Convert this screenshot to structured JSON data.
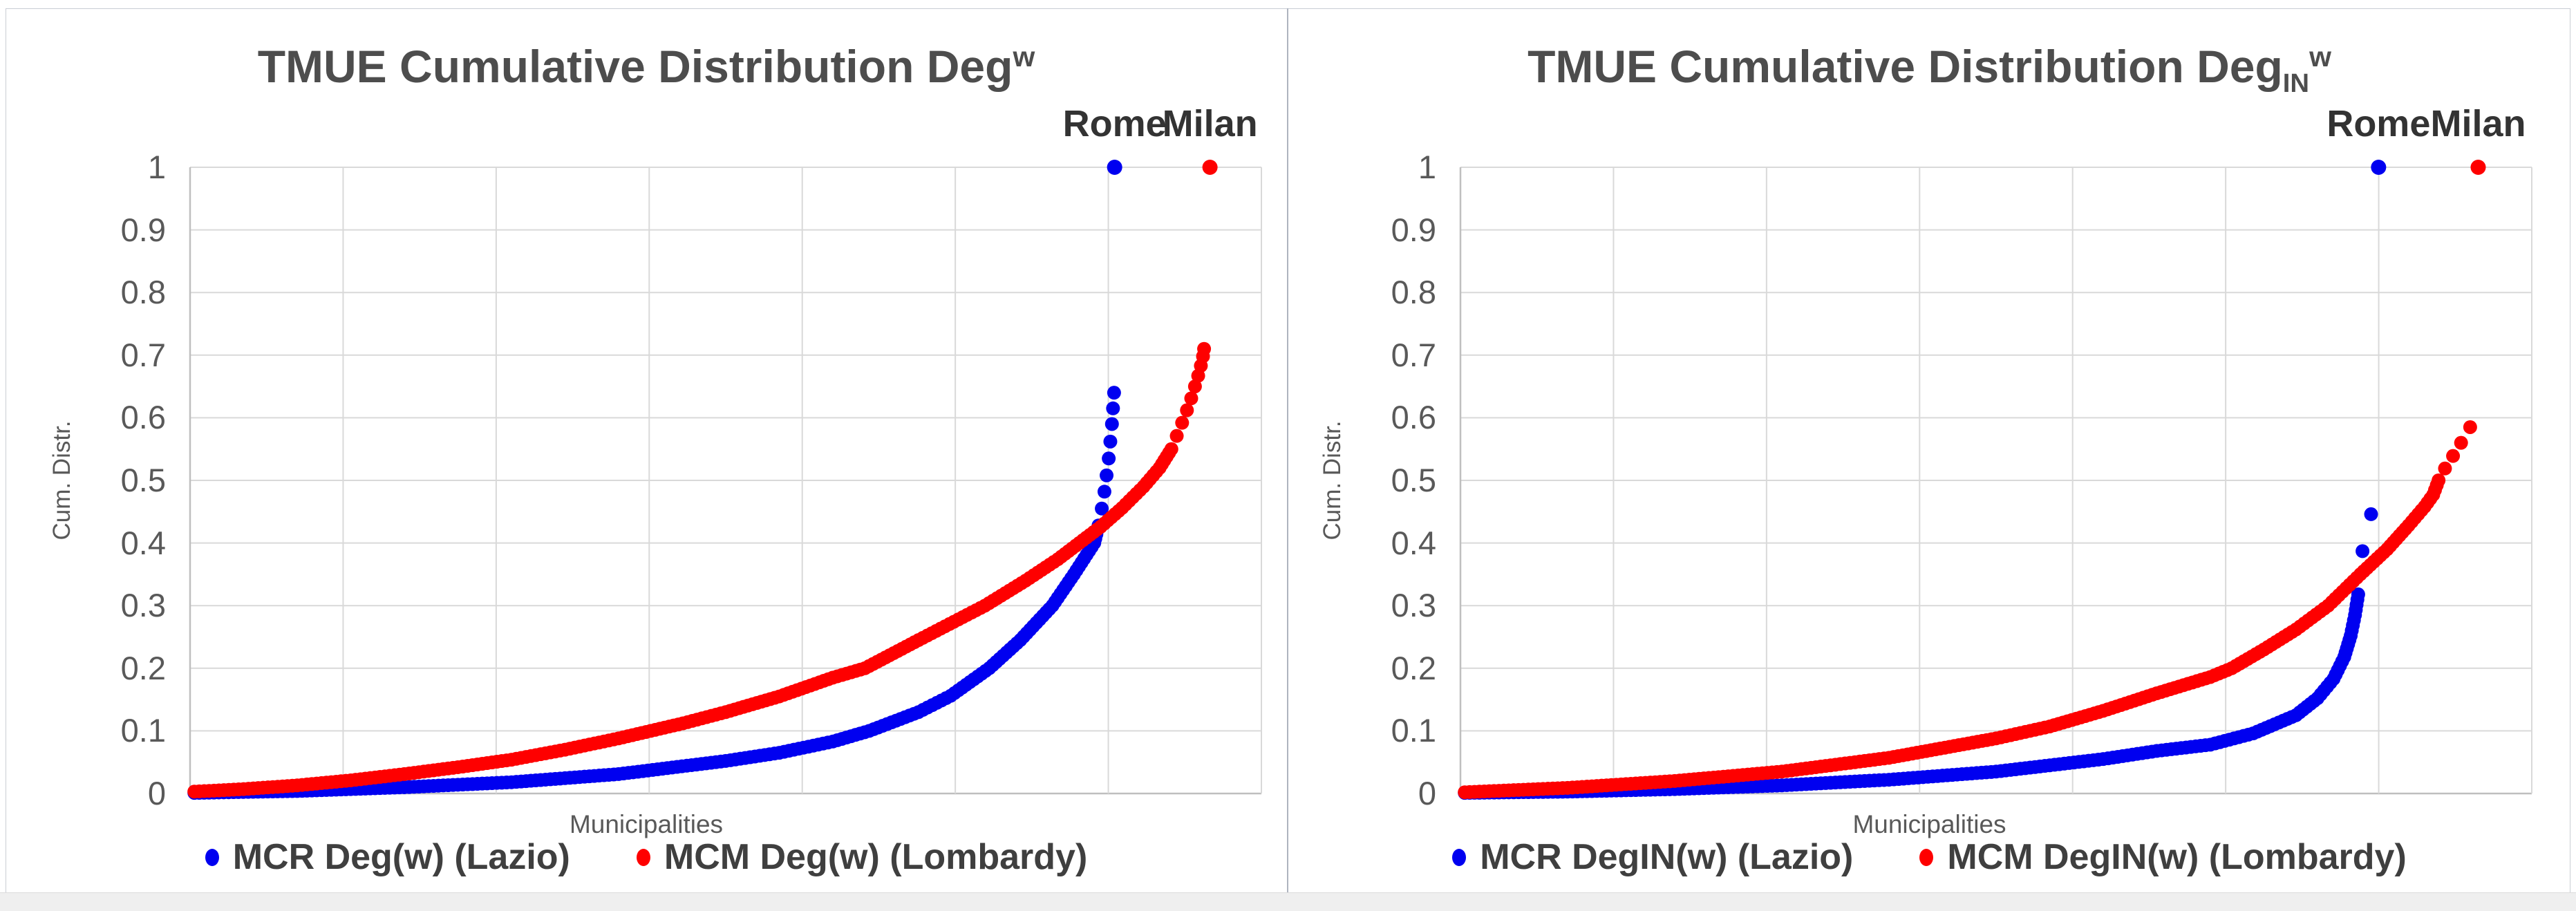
{
  "figure": {
    "bg": "#ffffff",
    "frame_border": "#c9cdd4",
    "divider": "#aeb4bf",
    "bottom_strip_bg": "#efefef",
    "bottom_strip_border": "#dcdcdc"
  },
  "styles": {
    "title_color": "#4d4d4d",
    "annotation_color": "#333333",
    "tick_color": "#595959",
    "axis_title_color": "#595959",
    "legend_text_color": "#3f3f3f",
    "gridline_color": "#d9d9d9",
    "axis_line_color": "#bfbfbf",
    "blue": "#0000f0",
    "red": "#fe0000"
  },
  "chart_data": [
    {
      "type": "scatter",
      "title": {
        "text": "TMUE Cumulative Distribution Deg",
        "sub": "",
        "sup": "w"
      },
      "x_axis": {
        "title": "Municipalities",
        "note": "no numeric tick labels; x given as fraction 0-1 of municipalities sorted by weighted degree"
      },
      "y_axis": {
        "title": "Cum. Distr.",
        "min": 0,
        "max": 1,
        "step": 0.1,
        "ticks": [
          "1",
          "0.9",
          "0.8",
          "0.7",
          "0.6",
          "0.5",
          "0.4",
          "0.3",
          "0.2",
          "0.1",
          "0"
        ]
      },
      "grid": {
        "h_lines": 11,
        "v_intervals": 7
      },
      "series": [
        {
          "name": "MCR Deg(w) (Lazio)",
          "color_key": "blue",
          "curve": [
            [
              0.004,
              0.001
            ],
            [
              0.1,
              0.004
            ],
            [
              0.2,
              0.01
            ],
            [
              0.3,
              0.018
            ],
            [
              0.4,
              0.031
            ],
            [
              0.5,
              0.052
            ],
            [
              0.55,
              0.065
            ],
            [
              0.6,
              0.083
            ],
            [
              0.634,
              0.1
            ],
            [
              0.68,
              0.13
            ],
            [
              0.71,
              0.156
            ],
            [
              0.746,
              0.2
            ],
            [
              0.775,
              0.245
            ],
            [
              0.805,
              0.3
            ],
            [
              0.825,
              0.35
            ],
            [
              0.844,
              0.4
            ],
            [
              0.848,
              0.428
            ]
          ],
          "tail": [
            [
              0.851,
              0.455
            ],
            [
              0.8535,
              0.482
            ],
            [
              0.8555,
              0.508
            ],
            [
              0.8575,
              0.535
            ],
            [
              0.859,
              0.562
            ],
            [
              0.8605,
              0.59
            ],
            [
              0.8615,
              0.615
            ],
            [
              0.8625,
              0.64
            ]
          ],
          "endpoint": {
            "label": "Rome",
            "x": 0.863,
            "y": 1.0
          }
        },
        {
          "name": "MCM Deg(w) (Lombardy)",
          "color_key": "red",
          "curve": [
            [
              0.004,
              0.003
            ],
            [
              0.05,
              0.007
            ],
            [
              0.1,
              0.013
            ],
            [
              0.15,
              0.021
            ],
            [
              0.2,
              0.031
            ],
            [
              0.25,
              0.042
            ],
            [
              0.3,
              0.054
            ],
            [
              0.35,
              0.07
            ],
            [
              0.4,
              0.088
            ],
            [
              0.46,
              0.112
            ],
            [
              0.5,
              0.13
            ],
            [
              0.55,
              0.155
            ],
            [
              0.6,
              0.185
            ],
            [
              0.63,
              0.2
            ],
            [
              0.68,
              0.245
            ],
            [
              0.742,
              0.3
            ],
            [
              0.78,
              0.34
            ],
            [
              0.81,
              0.374
            ],
            [
              0.83,
              0.4
            ],
            [
              0.85,
              0.426
            ],
            [
              0.87,
              0.456
            ],
            [
              0.89,
              0.49
            ],
            [
              0.905,
              0.52
            ],
            [
              0.916,
              0.55
            ]
          ],
          "tail": [
            [
              0.921,
              0.571
            ],
            [
              0.926,
              0.592
            ],
            [
              0.9305,
              0.612
            ],
            [
              0.9345,
              0.631
            ],
            [
              0.938,
              0.65
            ],
            [
              0.941,
              0.667
            ],
            [
              0.9435,
              0.683
            ],
            [
              0.9455,
              0.698
            ],
            [
              0.9465,
              0.71
            ]
          ],
          "endpoint": {
            "label": "Milan",
            "x": 0.952,
            "y": 1.0
          }
        }
      ]
    },
    {
      "type": "scatter",
      "title": {
        "text": "TMUE Cumulative Distribution Deg",
        "sub": "IN",
        "sup": "w"
      },
      "x_axis": {
        "title": "Municipalities",
        "note": "no numeric tick labels; x given as fraction 0-1 of municipalities sorted by weighted in-degree"
      },
      "y_axis": {
        "title": "Cum. Distr.",
        "min": 0,
        "max": 1,
        "step": 0.1,
        "ticks": [
          "1",
          "0.9",
          "0.8",
          "0.7",
          "0.6",
          "0.5",
          "0.4",
          "0.3",
          "0.2",
          "0.1",
          "0"
        ]
      },
      "grid": {
        "h_lines": 11,
        "v_intervals": 7
      },
      "series": [
        {
          "name": "MCR DegIN(w) (Lazio)",
          "color_key": "blue",
          "curve": [
            [
              0.004,
              0.001
            ],
            [
              0.1,
              0.003
            ],
            [
              0.2,
              0.007
            ],
            [
              0.3,
              0.013
            ],
            [
              0.4,
              0.022
            ],
            [
              0.5,
              0.035
            ],
            [
              0.6,
              0.055
            ],
            [
              0.65,
              0.068
            ],
            [
              0.7,
              0.078
            ],
            [
              0.74,
              0.096
            ],
            [
              0.78,
              0.125
            ],
            [
              0.8,
              0.152
            ],
            [
              0.815,
              0.183
            ],
            [
              0.825,
              0.218
            ],
            [
              0.831,
              0.252
            ],
            [
              0.835,
              0.285
            ],
            [
              0.838,
              0.318
            ]
          ],
          "tail": [
            [
              0.842,
              0.387
            ],
            [
              0.85,
              0.446
            ]
          ],
          "endpoint": {
            "label": "Rome",
            "x": 0.857,
            "y": 1.0
          }
        },
        {
          "name": "MCM DegIN(w) (Lombardy)",
          "color_key": "red",
          "curve": [
            [
              0.004,
              0.002
            ],
            [
              0.1,
              0.009
            ],
            [
              0.2,
              0.02
            ],
            [
              0.3,
              0.035
            ],
            [
              0.4,
              0.057
            ],
            [
              0.5,
              0.088
            ],
            [
              0.55,
              0.107
            ],
            [
              0.6,
              0.132
            ],
            [
              0.65,
              0.16
            ],
            [
              0.7,
              0.186
            ],
            [
              0.72,
              0.2
            ],
            [
              0.75,
              0.23
            ],
            [
              0.78,
              0.262
            ],
            [
              0.81,
              0.3
            ],
            [
              0.84,
              0.35
            ],
            [
              0.865,
              0.39
            ],
            [
              0.885,
              0.428
            ],
            [
              0.9,
              0.458
            ],
            [
              0.908,
              0.477
            ],
            [
              0.913,
              0.5
            ]
          ],
          "tail": [
            [
              0.919,
              0.519
            ],
            [
              0.9265,
              0.539
            ],
            [
              0.934,
              0.56
            ],
            [
              0.9425,
              0.585
            ]
          ],
          "endpoint": {
            "label": "Milan",
            "x": 0.95,
            "y": 1.0
          }
        }
      ]
    }
  ]
}
